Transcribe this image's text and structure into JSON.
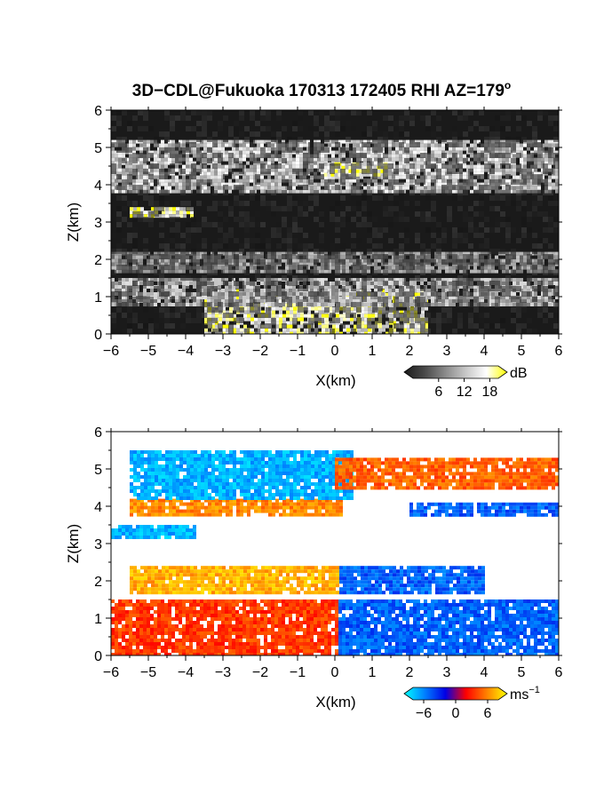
{
  "figure": {
    "title": "3D−CDL@Fukuoka 170313 172405 RHI AZ=179",
    "title_superscript": "o"
  },
  "chart_data": [
    {
      "type": "heatmap",
      "quantity": "backscatter",
      "xlabel": "X(km)",
      "ylabel": "Z(km)",
      "xlim": [
        -6,
        6
      ],
      "ylim": [
        0,
        6
      ],
      "x_ticks": [
        -6,
        -5,
        -4,
        -3,
        -2,
        -1,
        0,
        1,
        2,
        3,
        4,
        5,
        6
      ],
      "y_ticks": [
        0,
        1,
        2,
        3,
        4,
        5,
        6
      ],
      "colorbar": {
        "unit": "dB",
        "ticks": [
          6,
          12,
          18
        ],
        "range": [
          0,
          20
        ],
        "colors": [
          "#1a1a1a",
          "#4a4a4a",
          "#8a8a8a",
          "#c8c8c8",
          "#ffffff",
          "#ffff00"
        ]
      },
      "layers": [
        {
          "name": "near-surface cloud",
          "x_range": [
            -3.5,
            2.5
          ],
          "z_range": [
            0,
            1.2
          ],
          "level": 18
        },
        {
          "name": "low layer",
          "x_range": [
            -6,
            6
          ],
          "z_range": [
            0.8,
            1.5
          ],
          "level": 12
        },
        {
          "name": "layer ~2 km",
          "x_range": [
            -6,
            6
          ],
          "z_range": [
            1.7,
            2.2
          ],
          "level": 10
        },
        {
          "name": "layer ~3.3 km",
          "x_range": [
            -5.5,
            -3.8
          ],
          "z_range": [
            3.2,
            3.4
          ],
          "level": 18
        },
        {
          "name": "upper layer",
          "x_range": [
            -6,
            6
          ],
          "z_range": [
            3.8,
            5.2
          ],
          "level": 14
        },
        {
          "name": "upper core",
          "x_range": [
            -0.3,
            1.4
          ],
          "z_range": [
            4.3,
            4.6
          ],
          "level": 18
        }
      ]
    },
    {
      "type": "heatmap",
      "quantity": "doppler velocity",
      "xlabel": "X(km)",
      "ylabel": "Z(km)",
      "xlim": [
        -6,
        6
      ],
      "ylim": [
        0,
        6
      ],
      "x_ticks": [
        -6,
        -5,
        -4,
        -3,
        -2,
        -1,
        0,
        1,
        2,
        3,
        4,
        5,
        6
      ],
      "y_ticks": [
        0,
        1,
        2,
        3,
        4,
        5,
        6
      ],
      "colorbar": {
        "unit": "ms",
        "unit_superscript": "−1",
        "ticks": [
          -6,
          0,
          6
        ],
        "tick_labels": [
          "−6",
          "0",
          "6"
        ],
        "range": [
          -8,
          8
        ],
        "colors": [
          "#00ffff",
          "#0080ff",
          "#0000e6",
          "#ff0000",
          "#ff8000",
          "#ffff00"
        ]
      },
      "layers": [
        {
          "name": "low layer",
          "x_range": [
            -6,
            6
          ],
          "z_range": [
            0,
            1.5
          ],
          "velocity_left": 3,
          "velocity_right": -4
        },
        {
          "name": "layer ~2 km",
          "x_range": [
            -5.5,
            4
          ],
          "z_range": [
            1.7,
            2.4
          ],
          "velocity_left": 6,
          "velocity_right": -4
        },
        {
          "name": "layer ~3.3 km",
          "x_range": [
            -6,
            -3.8
          ],
          "z_range": [
            3.2,
            3.5
          ],
          "velocity": -6
        },
        {
          "name": "layer ~3.9 km",
          "x_range": [
            -5.5,
            0.2
          ],
          "z_range": [
            3.8,
            4.2
          ],
          "velocity": 5
        },
        {
          "name": "layer ~4.5 km",
          "x_range": [
            -5.5,
            0.5
          ],
          "z_range": [
            4.2,
            5.5
          ],
          "velocity": -6
        },
        {
          "name": "upper right",
          "x_range": [
            0,
            6
          ],
          "z_range": [
            4.5,
            5.3
          ],
          "velocity": 4
        },
        {
          "name": "layer ~4 km right",
          "x_range": [
            2,
            6
          ],
          "z_range": [
            3.8,
            4.1
          ],
          "velocity": -4
        }
      ]
    }
  ]
}
